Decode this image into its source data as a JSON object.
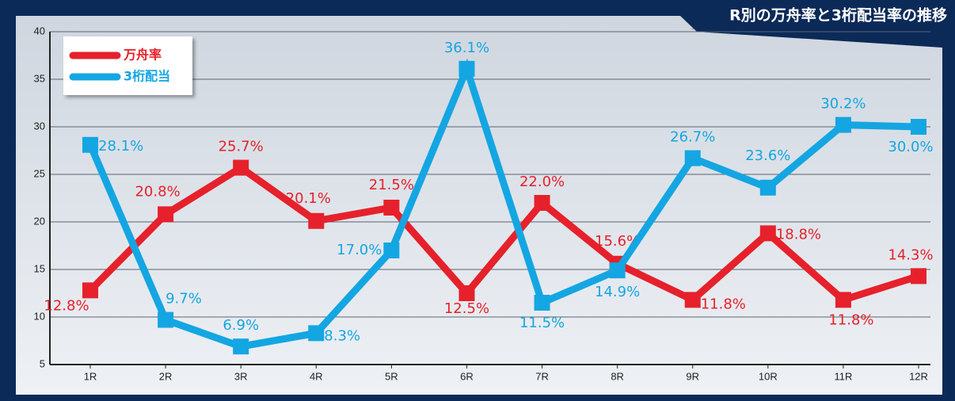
{
  "chart_data": {
    "type": "line",
    "title": "R別の万舟率と3桁配当率の推移",
    "categories": [
      "1R",
      "2R",
      "3R",
      "4R",
      "5R",
      "6R",
      "7R",
      "8R",
      "9R",
      "10R",
      "11R",
      "12R"
    ],
    "series": [
      {
        "name": "万舟率",
        "color": "#e6212b",
        "values": [
          12.8,
          20.8,
          25.7,
          20.1,
          21.5,
          12.5,
          22.0,
          15.6,
          11.8,
          18.8,
          11.8,
          14.3
        ],
        "value_labels": [
          "12.8%",
          "20.8%",
          "25.7%",
          "20.1%",
          "21.5%",
          "12.5%",
          "22.0%",
          "15.6%",
          "11.8%",
          "18.8%",
          "11.8%",
          "14.3%"
        ]
      },
      {
        "name": "3桁配当",
        "color": "#14a6e2",
        "values": [
          28.1,
          9.7,
          6.9,
          8.3,
          17.0,
          36.1,
          11.5,
          14.9,
          26.7,
          23.6,
          30.2,
          30.0
        ],
        "value_labels": [
          "28.1%",
          "9.7%",
          "6.9%",
          "8.3%",
          "17.0%",
          "36.1%",
          "11.5%",
          "14.9%",
          "26.7%",
          "23.6%",
          "30.2%",
          "30.0%"
        ]
      }
    ],
    "ylim": [
      5,
      40
    ],
    "yticks": [
      5,
      10,
      15,
      20,
      25,
      30,
      35,
      40
    ],
    "grid": true,
    "legend": "upper left"
  }
}
